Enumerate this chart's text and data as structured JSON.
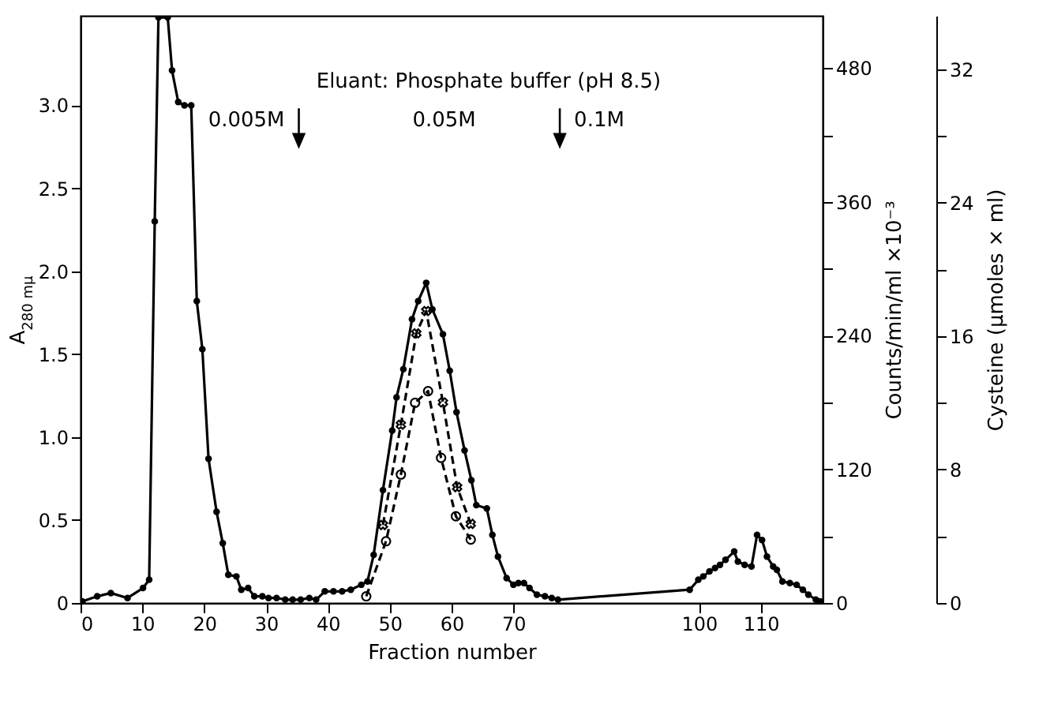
{
  "chart_data": {
    "type": "line",
    "xlabel": "Fraction number",
    "ylabel": "A$_{280 mμ}$",
    "y2label": "Counts/min/ml ×10⁻³",
    "y3label": "Cysteine  (μmoles × ml)",
    "xlim": [
      0,
      120
    ],
    "xticks": [
      0,
      10,
      20,
      30,
      40,
      50,
      60,
      70,
      100,
      110
    ],
    "ylim": [
      0,
      3.54
    ],
    "yticks": [
      0,
      0.5,
      {
        "value": 1,
        "label": "1.0"
      },
      1.5,
      {
        "value": 2,
        "label": "2.0"
      },
      2.5,
      {
        "value": 3,
        "label": "3.0"
      }
    ],
    "y2lim": [
      0,
      527
    ],
    "y2ticks": [
      0,
      {
        "value": 60,
        "label": null
      },
      120,
      {
        "value": 180,
        "label": null
      },
      240,
      {
        "value": 300,
        "label": null
      },
      360,
      {
        "value": 420,
        "label": null
      },
      480
    ],
    "y3lim": [
      0,
      35.2
    ],
    "y3ticks": [
      0,
      {
        "value": 4,
        "label": null
      },
      8,
      {
        "value": 12,
        "label": null
      },
      16,
      {
        "value": 20,
        "label": null
      },
      24,
      {
        "value": 28,
        "label": null
      },
      32
    ],
    "annotations": [
      "Eluant: Phosphate buffer (pH 8.5)",
      "0.05M"
    ],
    "ref_lines": [
      {
        "axis": "x",
        "value": 35.3,
        "label": "0.005M"
      },
      {
        "axis": "x",
        "value": 77.5,
        "label": "0.1M"
      }
    ],
    "series": [
      {
        "color": "#000000",
        "line_style": "solid",
        "marker": "circle",
        "x": [
          0.3,
          2.7,
          4.9,
          7.6,
          10.1,
          11.1,
          12.0,
          12.6,
          14.1,
          14.8,
          15.8,
          16.8,
          17.9,
          18.8,
          19.7,
          20.7,
          22.0,
          23.0,
          23.9,
          25.2,
          26.0,
          27.1,
          28.1,
          29.4,
          30.4,
          31.7,
          33.1,
          34.3,
          35.6,
          37.0,
          38.1,
          39.5,
          40.9,
          42.3,
          43.7,
          45.4,
          46.4,
          47.4,
          48.9,
          50.4,
          51.1,
          52.2,
          53.6,
          54.6,
          55.9,
          56.9,
          58.6,
          59.7,
          60.8,
          62.1,
          63.2,
          64.0,
          65.7,
          66.6,
          67.5,
          68.9,
          70.0,
          70.8,
          71.7,
          72.6,
          73.8,
          75.1,
          76.2,
          77.2,
          98.5,
          99.9,
          100.7,
          101.7,
          102.6,
          103.4,
          104.3,
          105.7,
          106.3,
          107.4,
          108.5,
          109.4,
          110.2,
          111.0,
          112.0,
          112.6,
          113.5,
          114.7,
          115.8,
          116.8,
          117.7,
          118.9,
          119.6
        ],
        "values": [
          0.01,
          0.04,
          0.06,
          0.03,
          0.09,
          0.14,
          2.3,
          3.53,
          3.53,
          3.21,
          3.02,
          3.0,
          3.0,
          1.82,
          1.53,
          0.87,
          0.55,
          0.36,
          0.17,
          0.16,
          0.08,
          0.09,
          0.04,
          0.04,
          0.03,
          0.03,
          0.02,
          0.02,
          0.02,
          0.03,
          0.02,
          0.07,
          0.07,
          0.07,
          0.08,
          0.11,
          0.13,
          0.29,
          0.68,
          1.04,
          1.24,
          1.41,
          1.71,
          1.82,
          1.93,
          1.77,
          1.62,
          1.4,
          1.15,
          0.92,
          0.74,
          0.59,
          0.57,
          0.41,
          0.28,
          0.15,
          0.11,
          0.12,
          0.12,
          0.09,
          0.05,
          0.04,
          0.03,
          0.02,
          0.08,
          0.14,
          0.16,
          0.19,
          0.21,
          0.23,
          0.26,
          0.31,
          0.25,
          0.23,
          0.22,
          0.41,
          0.38,
          0.28,
          0.22,
          0.2,
          0.13,
          0.12,
          0.11,
          0.08,
          0.05,
          0.02,
          0.01
        ]
      },
      {
        "color": "#000000",
        "axis": "y2",
        "line_style": "dashed",
        "marker": "cross",
        "x": [
          48.9,
          51.8,
          54.3,
          55.9,
          58.6,
          60.9,
          63.1
        ],
        "values": [
          70,
          160,
          242,
          262,
          180,
          104,
          71
        ]
      },
      {
        "color": "#000000",
        "axis": "y3",
        "line_style": "dashed",
        "marker": "circle",
        "x": [
          46.2,
          49.4,
          51.8,
          54.1,
          56.2,
          58.3,
          60.7,
          63.1
        ],
        "values": [
          0.4,
          3.7,
          7.7,
          12.0,
          12.7,
          8.7,
          5.2,
          3.8
        ]
      }
    ]
  }
}
